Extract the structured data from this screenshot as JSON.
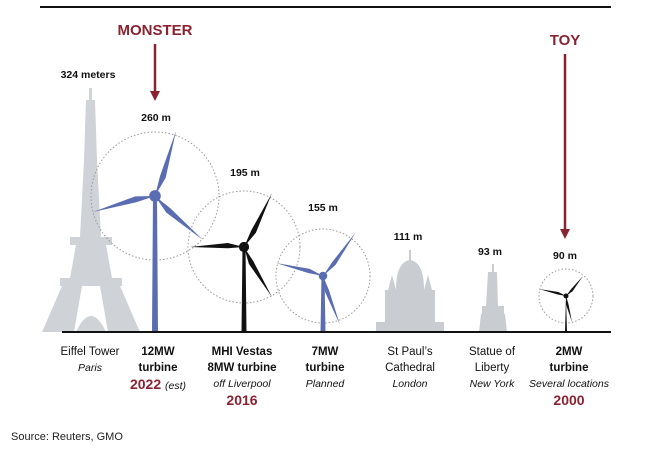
{
  "callouts": {
    "monster": "MONSTER",
    "toy": "TOY"
  },
  "heights": {
    "eiffel": "324 meters",
    "t12": "260 m",
    "t8": "195 m",
    "t7": "155 m",
    "stpaul": "111 m",
    "liberty": "93 m",
    "t2": "90 m"
  },
  "columns": {
    "eiffel": {
      "name": "Eiffel Tower",
      "sub": "Paris"
    },
    "t12": {
      "name1": "12MW",
      "name2": "turbine",
      "year": "2022",
      "year_note": "(est)"
    },
    "t8": {
      "name1": "MHI Vestas",
      "name2": "8MW turbine",
      "sub": "off Liverpool",
      "year": "2016"
    },
    "t7": {
      "name1": "7MW",
      "name2": "turbine",
      "sub": "Planned"
    },
    "stpaul": {
      "name1": "St Paul’s",
      "name2": "Cathedral",
      "sub": "London"
    },
    "liberty": {
      "name1": "Statue of",
      "name2": "Liberty",
      "sub": "New York"
    },
    "t2": {
      "name1": "2MW",
      "name2": "turbine",
      "sub": "Several locations",
      "year": "2000"
    }
  },
  "source": "Source: Reuters, GMO",
  "colors": {
    "accent": "#8b2232",
    "blue_turbine": "#5a6db3",
    "black_turbine": "#111111",
    "landmark": "#c9cdd2"
  }
}
